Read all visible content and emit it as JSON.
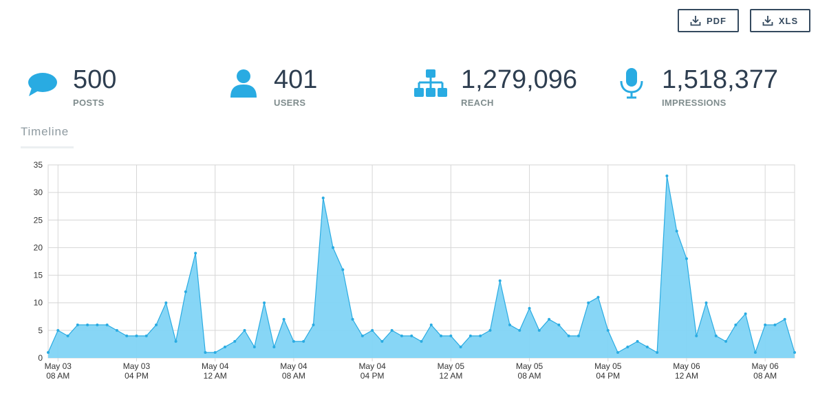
{
  "toolbar": {
    "pdf_label": "PDF",
    "xls_label": "XLS"
  },
  "stats": [
    {
      "value": "500",
      "label": "POSTS",
      "icon": "chat-bubble-icon"
    },
    {
      "value": "401",
      "label": "USERS",
      "icon": "user-icon"
    },
    {
      "value": "1,279,096",
      "label": "REACH",
      "icon": "sitemap-icon"
    },
    {
      "value": "1,518,377",
      "label": "IMPRESSIONS",
      "icon": "microphone-icon"
    }
  ],
  "timeline": {
    "title": "Timeline"
  },
  "colors": {
    "accent": "#29abe2",
    "fill": "#81d4f5",
    "text": "#2e3e50",
    "muted": "#7f8c8d"
  },
  "chart_data": {
    "type": "area",
    "ylim": [
      0,
      35
    ],
    "yticks": [
      0,
      5,
      10,
      15,
      20,
      25,
      30,
      35
    ],
    "grid": true,
    "x_ticks": [
      {
        "line1": "May 03",
        "line2": "08 AM"
      },
      {
        "line1": "May 03",
        "line2": "04 PM"
      },
      {
        "line1": "May 04",
        "line2": "12 AM"
      },
      {
        "line1": "May 04",
        "line2": "08 AM"
      },
      {
        "line1": "May 04",
        "line2": "04 PM"
      },
      {
        "line1": "May 05",
        "line2": "12 AM"
      },
      {
        "line1": "May 05",
        "line2": "08 AM"
      },
      {
        "line1": "May 05",
        "line2": "04 PM"
      },
      {
        "line1": "May 06",
        "line2": "12 AM"
      },
      {
        "line1": "May 06",
        "line2": "08 AM"
      }
    ],
    "series": [
      {
        "values": [
          1,
          5,
          4,
          6,
          6,
          6,
          6,
          5,
          4,
          4,
          4,
          6,
          10,
          3,
          12,
          19,
          1,
          1,
          2,
          3,
          5,
          2,
          10,
          2,
          7,
          3,
          3,
          6,
          29,
          20,
          16,
          7,
          4,
          5,
          3,
          5,
          4,
          4,
          3,
          6,
          4,
          4,
          2,
          4,
          4,
          5,
          14,
          6,
          5,
          9,
          5,
          7,
          6,
          4,
          4,
          10,
          11,
          5,
          1,
          2,
          3,
          2,
          1,
          33,
          23,
          18,
          4,
          10,
          4,
          3,
          6,
          8,
          1,
          6,
          6,
          7,
          1
        ]
      }
    ]
  }
}
